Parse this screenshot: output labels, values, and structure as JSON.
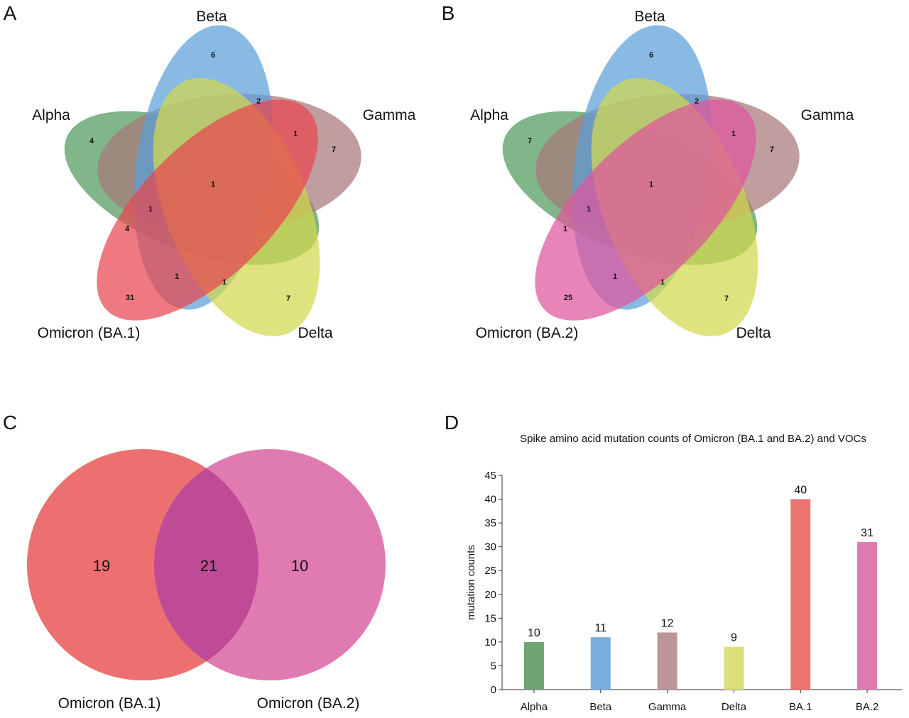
{
  "chart_data": [
    {
      "type": "venn",
      "panel_label": "A",
      "sets": [
        "Alpha",
        "Beta",
        "Gamma",
        "Delta",
        "Omicron (BA.1)"
      ],
      "colors": {
        "Alpha": "#4f9a5c",
        "Beta": "#5b9fd8",
        "Gamma": "#a8797c",
        "Delta": "#d2d84e",
        "Omicron (BA.1)": "#e9454f"
      },
      "regions": [
        {
          "sets": [
            "Beta"
          ],
          "value": 6
        },
        {
          "sets": [
            "Alpha"
          ],
          "value": 4
        },
        {
          "sets": [
            "Gamma"
          ],
          "value": 7
        },
        {
          "sets": [
            "Delta"
          ],
          "value": 7
        },
        {
          "sets": [
            "Omicron (BA.1)"
          ],
          "value": 31
        },
        {
          "sets": [
            "Beta",
            "Gamma"
          ],
          "value": 2
        },
        {
          "sets": [
            "Gamma",
            "Omicron (BA.1)"
          ],
          "value": 1
        },
        {
          "sets": [
            "Alpha",
            "Beta",
            "Gamma",
            "Delta",
            "Omicron (BA.1)"
          ],
          "value": 1
        },
        {
          "sets": [
            "Alpha",
            "Beta",
            "Gamma",
            "Omicron (BA.1)"
          ],
          "value": 1
        },
        {
          "sets": [
            "Alpha",
            "Omicron (BA.1)"
          ],
          "value": 4
        },
        {
          "sets": [
            "Beta",
            "Omicron (BA.1)"
          ],
          "value": 1
        },
        {
          "sets": [
            "Delta",
            "Omicron (BA.1)"
          ],
          "value": 1
        }
      ]
    },
    {
      "type": "venn",
      "panel_label": "B",
      "sets": [
        "Alpha",
        "Beta",
        "Gamma",
        "Delta",
        "Omicron (BA.2)"
      ],
      "colors": {
        "Alpha": "#4f9a5c",
        "Beta": "#5b9fd8",
        "Gamma": "#a8797c",
        "Delta": "#d2d84e",
        "Omicron (BA.2)": "#e0559e"
      },
      "regions": [
        {
          "sets": [
            "Beta"
          ],
          "value": 6
        },
        {
          "sets": [
            "Alpha"
          ],
          "value": 7
        },
        {
          "sets": [
            "Gamma"
          ],
          "value": 7
        },
        {
          "sets": [
            "Delta"
          ],
          "value": 7
        },
        {
          "sets": [
            "Omicron (BA.2)"
          ],
          "value": 25
        },
        {
          "sets": [
            "Beta",
            "Gamma"
          ],
          "value": 2
        },
        {
          "sets": [
            "Gamma",
            "Omicron (BA.2)"
          ],
          "value": 1
        },
        {
          "sets": [
            "Alpha",
            "Beta",
            "Gamma",
            "Delta",
            "Omicron (BA.2)"
          ],
          "value": 1
        },
        {
          "sets": [
            "Alpha",
            "Beta",
            "Gamma",
            "Omicron (BA.2)"
          ],
          "value": 1
        },
        {
          "sets": [
            "Alpha",
            "Omicron (BA.2)"
          ],
          "value": 1
        },
        {
          "sets": [
            "Beta",
            "Omicron (BA.2)"
          ],
          "value": 1
        },
        {
          "sets": [
            "Delta",
            "Omicron (BA.2)"
          ],
          "value": 1
        }
      ]
    },
    {
      "type": "venn",
      "panel_label": "C",
      "sets": [
        "Omicron (BA.1)",
        "Omicron (BA.2)"
      ],
      "colors": {
        "Omicron (BA.1)": "#ec7070",
        "Omicron (BA.2)": "#e07bb2",
        "overlap": "#bf4a96"
      },
      "regions": [
        {
          "sets": [
            "Omicron (BA.1)"
          ],
          "value": 19
        },
        {
          "sets": [
            "Omicron (BA.1)",
            "Omicron (BA.2)"
          ],
          "value": 21
        },
        {
          "sets": [
            "Omicron (BA.2)"
          ],
          "value": 10
        }
      ]
    },
    {
      "type": "bar",
      "panel_label": "D",
      "title": "Spike amino acid mutation counts of Omicron (BA.1 and BA.2) and VOCs",
      "xlabel": "",
      "ylabel": "mutation counts",
      "categories": [
        "Alpha",
        "Beta",
        "Gamma",
        "Delta",
        "BA.1",
        "BA.2"
      ],
      "values": [
        10,
        11,
        12,
        9,
        40,
        31
      ],
      "colors": [
        "#6fa474",
        "#79aedc",
        "#bc9599",
        "#dde07a",
        "#ed7373",
        "#e07bb2"
      ],
      "ylim": [
        0,
        45
      ],
      "yticks": [
        0,
        5,
        10,
        15,
        20,
        25,
        30,
        35,
        40,
        45
      ],
      "grid": false,
      "data_labels": true
    }
  ]
}
